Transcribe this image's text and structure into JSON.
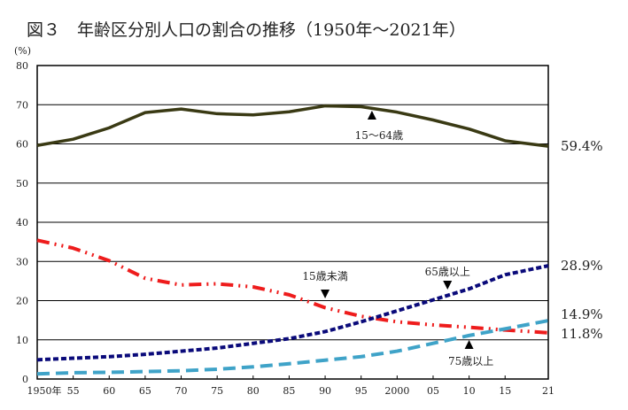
{
  "chart_data": {
    "type": "line",
    "title": "図３　年齢区分別人口の割合の推移（1950年～2021年）",
    "ylabel": "(%)",
    "ylim": [
      0,
      80
    ],
    "yticks": [
      "0",
      "10",
      "20",
      "30",
      "40",
      "50",
      "60",
      "70",
      "80"
    ],
    "grid": true,
    "x": [
      1950,
      1955,
      1960,
      1965,
      1970,
      1975,
      1980,
      1985,
      1990,
      1995,
      2000,
      2005,
      2010,
      2015,
      2021
    ],
    "xlim": [
      1950,
      2021
    ],
    "xtick_labels": [
      {
        "year": 1950,
        "label": "1950年"
      },
      {
        "year": 1955,
        "label": "55"
      },
      {
        "year": 1960,
        "label": "60"
      },
      {
        "year": 1965,
        "label": "65"
      },
      {
        "year": 1970,
        "label": "70"
      },
      {
        "year": 1975,
        "label": "75"
      },
      {
        "year": 1980,
        "label": "80"
      },
      {
        "year": 1985,
        "label": "85"
      },
      {
        "year": 1990,
        "label": "90"
      },
      {
        "year": 1995,
        "label": "95"
      },
      {
        "year": 2000,
        "label": "2000"
      },
      {
        "year": 2005,
        "label": "05"
      },
      {
        "year": 2010,
        "label": "10"
      },
      {
        "year": 2015,
        "label": "15"
      },
      {
        "year": 2021,
        "label": "21"
      }
    ],
    "series": [
      {
        "name": "15～64歳",
        "color": "#3a3a14",
        "style": "solid",
        "values": [
          59.6,
          61.2,
          64.1,
          68.0,
          68.9,
          67.7,
          67.4,
          68.2,
          69.7,
          69.5,
          68.1,
          66.1,
          63.8,
          60.8,
          59.4
        ],
        "end_label": "59.4%",
        "annotation_year": 1996.5,
        "arrow": "up"
      },
      {
        "name": "15歳未満",
        "color": "#ee1c1c",
        "style": "dashdotdot",
        "values": [
          35.4,
          33.4,
          30.2,
          25.7,
          24.0,
          24.3,
          23.5,
          21.5,
          18.2,
          16.0,
          14.6,
          13.8,
          13.2,
          12.5,
          11.8
        ],
        "end_label": "11.8%",
        "annotation_year": 1990,
        "arrow": "down"
      },
      {
        "name": "65歳以上",
        "color": "#0a0a7a",
        "style": "dotted",
        "values": [
          4.9,
          5.3,
          5.7,
          6.3,
          7.1,
          7.9,
          9.1,
          10.3,
          12.1,
          14.6,
          17.4,
          20.2,
          23.0,
          26.6,
          28.9
        ],
        "end_label": "28.9%",
        "annotation_year": 2007,
        "arrow": "down"
      },
      {
        "name": "75歳以上",
        "color": "#3fa3c8",
        "style": "dashed",
        "values": [
          1.3,
          1.6,
          1.7,
          1.9,
          2.1,
          2.5,
          3.1,
          3.9,
          4.8,
          5.7,
          7.1,
          9.1,
          11.1,
          12.8,
          14.9
        ],
        "end_label": "14.9%",
        "annotation_year": 2010,
        "arrow": "up"
      }
    ]
  }
}
